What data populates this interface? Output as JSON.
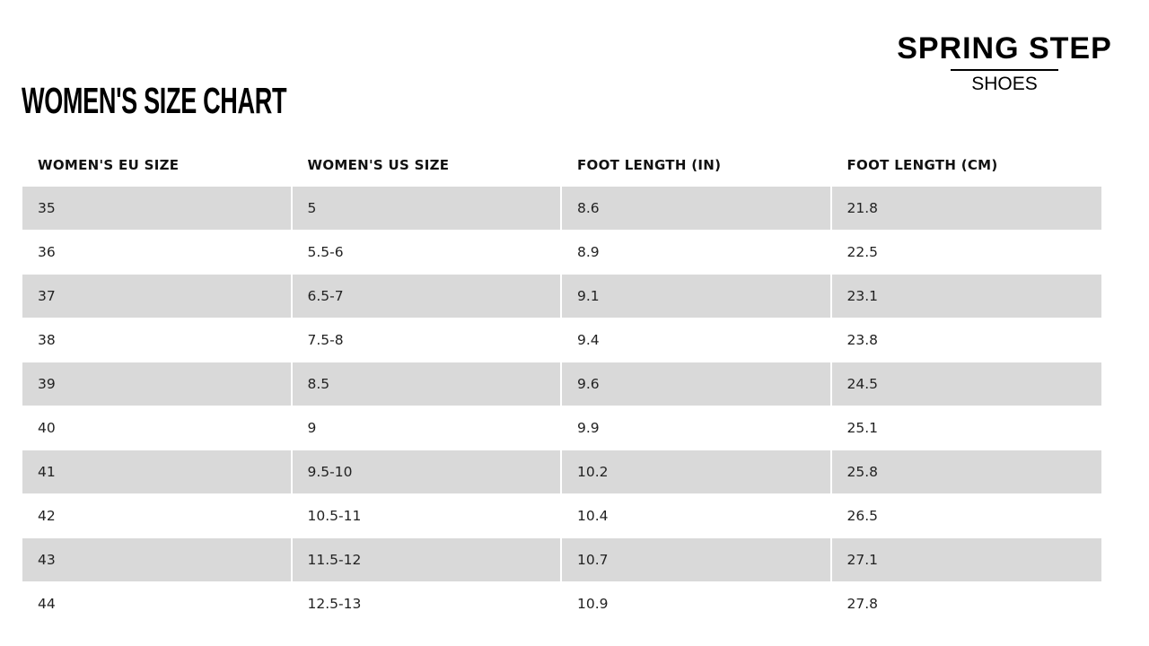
{
  "title": "WOMEN'S SIZE CHART",
  "logo": {
    "main": "SPRING STEP",
    "sub": "SHOES"
  },
  "colors": {
    "shaded_row": "#d9d9d9",
    "text": "#1a1a1a"
  },
  "table": {
    "headers": [
      "WOMEN'S EU SIZE",
      "WOMEN'S US SIZE",
      "FOOT LENGTH (IN)",
      "FOOT LENGTH (CM)"
    ],
    "rows": [
      [
        "35",
        "5",
        "8.6",
        "21.8"
      ],
      [
        "36",
        "5.5-6",
        "8.9",
        "22.5"
      ],
      [
        "37",
        "6.5-7",
        "9.1",
        "23.1"
      ],
      [
        "38",
        "7.5-8",
        "9.4",
        "23.8"
      ],
      [
        "39",
        "8.5",
        "9.6",
        "24.5"
      ],
      [
        "40",
        "9",
        "9.9",
        "25.1"
      ],
      [
        "41",
        "9.5-10",
        "10.2",
        "25.8"
      ],
      [
        "42",
        "10.5-11",
        "10.4",
        "26.5"
      ],
      [
        "43",
        "11.5-12",
        "10.7",
        "27.1"
      ],
      [
        "44",
        "12.5-13",
        "10.9",
        "27.8"
      ]
    ]
  }
}
